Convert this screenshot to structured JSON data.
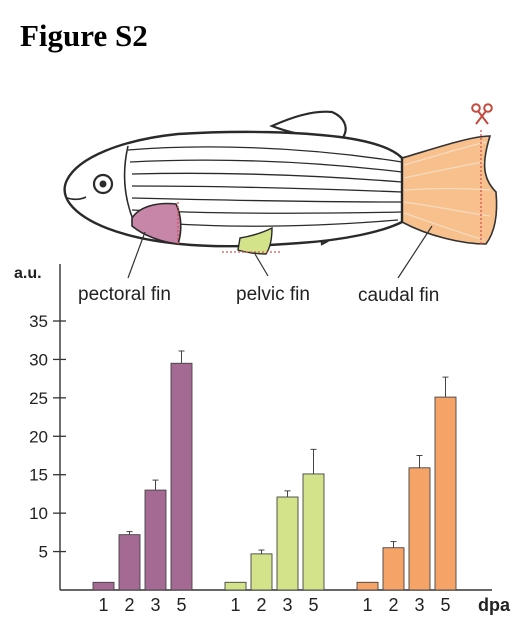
{
  "figure_title": "Figure S2",
  "fish_labels": {
    "pectoral": "pectoral fin",
    "pelvic": "pelvic fin",
    "caudal": "caudal fin"
  },
  "icons": {
    "amputation": "scissors-icon"
  },
  "colors": {
    "pectoral": "#a56a93",
    "pelvic": "#d3e38a",
    "caudal": "#f5a367",
    "pectoral_fin_fill": "#c785a8",
    "cut_line": "#d9534f"
  },
  "chart_data": {
    "type": "bar",
    "ylabel": "a.u.",
    "xlabel": "dpa",
    "ylim": [
      0,
      35
    ],
    "yticks": [
      5,
      10,
      15,
      20,
      25,
      30,
      35
    ],
    "grid": false,
    "legend": "none",
    "categories": [
      "1",
      "2",
      "3",
      "5"
    ],
    "series": [
      {
        "color": "#a56a93",
        "values": [
          1,
          7.2,
          13,
          29.5
        ],
        "errors": [
          0,
          0.4,
          1.3,
          1.6
        ]
      },
      {
        "color": "#d3e38a",
        "values": [
          1,
          4.7,
          12.1,
          15.1
        ],
        "errors": [
          0,
          0.5,
          0.8,
          3.2
        ]
      },
      {
        "color": "#f5a367",
        "values": [
          1,
          5.5,
          15.9,
          25.1
        ],
        "errors": [
          0,
          0.8,
          1.6,
          2.6
        ]
      }
    ]
  }
}
